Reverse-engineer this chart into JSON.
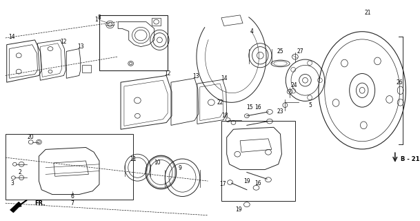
{
  "bg_color": "#ffffff",
  "fig_width": 6.09,
  "fig_height": 3.2,
  "dpi": 100,
  "line_color": "#222222",
  "label_fontsize": 5.5,
  "bold_label_fontsize": 6.0
}
